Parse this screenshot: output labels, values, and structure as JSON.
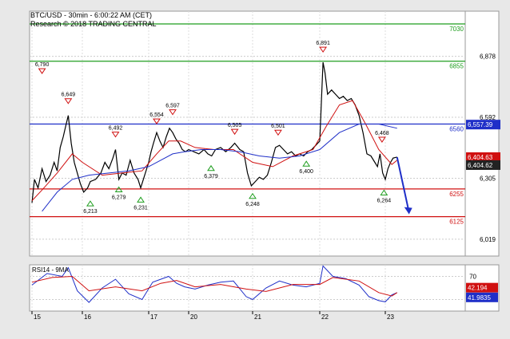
{
  "header": {
    "title": "BTC/USD - 30min - 6:00:22 AM (CET)",
    "copyright": "Research © 2018 TRADING CENTRAL"
  },
  "chart_data": {
    "type": "line",
    "instrument": "BTC/USD",
    "timeframe": "30min",
    "x_ticks": [
      "15",
      "16",
      "17",
      "20",
      "21",
      "22",
      "23"
    ],
    "y_ticks": [
      6019,
      6305,
      6592,
      6878
    ],
    "y_tick_labels": [
      "6,019",
      "6,305",
      "6,592",
      "6,878"
    ],
    "ylim": [
      5940,
      7090
    ],
    "horizontal_levels": [
      {
        "label": "7030",
        "value": 7030,
        "color": "#1f9e1f"
      },
      {
        "label": "6855",
        "value": 6855,
        "color": "#1f9e1f"
      },
      {
        "label": "6560",
        "value": 6560,
        "color": "#1f2fc8"
      },
      {
        "label": "6255",
        "value": 6255,
        "color": "#d01010"
      },
      {
        "label": "6125",
        "value": 6125,
        "color": "#d01010"
      }
    ],
    "price_badges": [
      {
        "label": "6,557.39",
        "value": 6557.39,
        "color": "#1f2fc8"
      },
      {
        "label": "6,404.63",
        "value": 6404.63,
        "color": "#d01010"
      },
      {
        "label": "6,404.62",
        "value": 6404.62,
        "color": "#222222"
      }
    ],
    "annotations": [
      {
        "label": "6,790",
        "value": 6790,
        "kind": "high",
        "x": 0.2
      },
      {
        "label": "6,649",
        "value": 6649,
        "kind": "high",
        "x": 0.72
      },
      {
        "label": "6,213",
        "value": 6213,
        "kind": "low",
        "x": 1.12
      },
      {
        "label": "6,492",
        "value": 6492,
        "kind": "high",
        "x": 1.5
      },
      {
        "label": "6,279",
        "value": 6279,
        "kind": "low",
        "x": 1.55
      },
      {
        "label": "6,231",
        "value": 6231,
        "kind": "low",
        "x": 1.88
      },
      {
        "label": "6,554",
        "value": 6554,
        "kind": "high",
        "x": 2.2
      },
      {
        "label": "6,597",
        "value": 6597,
        "kind": "high",
        "x": 2.6
      },
      {
        "label": "6,379",
        "value": 6379,
        "kind": "low",
        "x": 3.35
      },
      {
        "label": "6,505",
        "value": 6505,
        "kind": "high",
        "x": 3.72
      },
      {
        "label": "6,248",
        "value": 6248,
        "kind": "low",
        "x": 4.0
      },
      {
        "label": "6,501",
        "value": 6501,
        "kind": "high",
        "x": 4.38
      },
      {
        "label": "6,400",
        "value": 6400,
        "kind": "low",
        "x": 4.8
      },
      {
        "label": "6,891",
        "value": 6891,
        "kind": "high",
        "x": 5.05
      },
      {
        "label": "6,468",
        "value": 6468,
        "kind": "high",
        "x": 5.95
      },
      {
        "label": "6,264",
        "value": 6264,
        "kind": "low",
        "x": 5.98
      }
    ],
    "series": [
      {
        "color": "#000000",
        "points": [
          [
            0.0,
            6190
          ],
          [
            0.05,
            6300
          ],
          [
            0.12,
            6260
          ],
          [
            0.2,
            6350
          ],
          [
            0.28,
            6290
          ],
          [
            0.36,
            6320
          ],
          [
            0.44,
            6380
          ],
          [
            0.5,
            6340
          ],
          [
            0.56,
            6450
          ],
          [
            0.62,
            6500
          ],
          [
            0.68,
            6560
          ],
          [
            0.72,
            6600
          ],
          [
            0.78,
            6470
          ],
          [
            0.84,
            6380
          ],
          [
            0.9,
            6330
          ],
          [
            0.96,
            6280
          ],
          [
            1.02,
            6240
          ],
          [
            1.08,
            6260
          ],
          [
            1.12,
            6290
          ],
          [
            1.2,
            6300
          ],
          [
            1.28,
            6330
          ],
          [
            1.34,
            6380
          ],
          [
            1.4,
            6350
          ],
          [
            1.46,
            6400
          ],
          [
            1.5,
            6440
          ],
          [
            1.55,
            6300
          ],
          [
            1.6,
            6330
          ],
          [
            1.66,
            6320
          ],
          [
            1.72,
            6390
          ],
          [
            1.78,
            6330
          ],
          [
            1.84,
            6300
          ],
          [
            1.88,
            6260
          ],
          [
            1.94,
            6320
          ],
          [
            2.0,
            6380
          ],
          [
            2.06,
            6430
          ],
          [
            2.12,
            6470
          ],
          [
            2.2,
            6520
          ],
          [
            2.28,
            6480
          ],
          [
            2.36,
            6450
          ],
          [
            2.44,
            6500
          ],
          [
            2.52,
            6540
          ],
          [
            2.6,
            6520
          ],
          [
            2.68,
            6490
          ],
          [
            2.76,
            6470
          ],
          [
            2.84,
            6440
          ],
          [
            2.92,
            6430
          ],
          [
            3.0,
            6440
          ],
          [
            3.08,
            6430
          ],
          [
            3.16,
            6420
          ],
          [
            3.24,
            6440
          ],
          [
            3.3,
            6420
          ],
          [
            3.36,
            6410
          ],
          [
            3.42,
            6440
          ],
          [
            3.5,
            6450
          ],
          [
            3.58,
            6430
          ],
          [
            3.66,
            6450
          ],
          [
            3.72,
            6470
          ],
          [
            3.8,
            6440
          ],
          [
            3.86,
            6430
          ],
          [
            3.92,
            6330
          ],
          [
            3.98,
            6270
          ],
          [
            4.04,
            6290
          ],
          [
            4.1,
            6310
          ],
          [
            4.16,
            6300
          ],
          [
            4.22,
            6320
          ],
          [
            4.28,
            6380
          ],
          [
            4.34,
            6450
          ],
          [
            4.4,
            6460
          ],
          [
            4.46,
            6440
          ],
          [
            4.52,
            6420
          ],
          [
            4.58,
            6430
          ],
          [
            4.64,
            6410
          ],
          [
            4.7,
            6420
          ],
          [
            4.76,
            6410
          ],
          [
            4.82,
            6430
          ],
          [
            4.88,
            6440
          ],
          [
            4.94,
            6460
          ],
          [
            5.0,
            6480
          ],
          [
            5.05,
            6850
          ],
          [
            5.08,
            6800
          ],
          [
            5.12,
            6700
          ],
          [
            5.18,
            6720
          ],
          [
            5.24,
            6700
          ],
          [
            5.3,
            6680
          ],
          [
            5.36,
            6690
          ],
          [
            5.42,
            6670
          ],
          [
            5.48,
            6680
          ],
          [
            5.54,
            6650
          ],
          [
            5.6,
            6600
          ],
          [
            5.66,
            6520
          ],
          [
            5.72,
            6420
          ],
          [
            5.78,
            6410
          ],
          [
            5.84,
            6380
          ],
          [
            5.88,
            6360
          ],
          [
            5.92,
            6420
          ],
          [
            5.96,
            6330
          ],
          [
            6.0,
            6300
          ],
          [
            6.04,
            6350
          ],
          [
            6.08,
            6380
          ],
          [
            6.12,
            6400
          ],
          [
            6.18,
            6405
          ]
        ]
      },
      {
        "color": "#d01010",
        "points": [
          [
            0.0,
            6200
          ],
          [
            0.2,
            6250
          ],
          [
            0.5,
            6330
          ],
          [
            0.8,
            6420
          ],
          [
            1.0,
            6380
          ],
          [
            1.3,
            6320
          ],
          [
            1.6,
            6330
          ],
          [
            1.9,
            6340
          ],
          [
            2.2,
            6420
          ],
          [
            2.5,
            6480
          ],
          [
            2.8,
            6480
          ],
          [
            3.1,
            6450
          ],
          [
            3.4,
            6440
          ],
          [
            3.7,
            6440
          ],
          [
            4.0,
            6380
          ],
          [
            4.3,
            6360
          ],
          [
            4.6,
            6410
          ],
          [
            4.9,
            6440
          ],
          [
            5.1,
            6550
          ],
          [
            5.3,
            6650
          ],
          [
            5.5,
            6670
          ],
          [
            5.7,
            6560
          ],
          [
            5.9,
            6440
          ],
          [
            6.1,
            6370
          ],
          [
            6.18,
            6390
          ]
        ]
      },
      {
        "color": "#1f2fc8",
        "points": [
          [
            0.2,
            6150
          ],
          [
            0.5,
            6240
          ],
          [
            0.8,
            6300
          ],
          [
            1.1,
            6320
          ],
          [
            1.4,
            6330
          ],
          [
            1.7,
            6340
          ],
          [
            2.0,
            6360
          ],
          [
            2.3,
            6390
          ],
          [
            2.6,
            6420
          ],
          [
            2.9,
            6430
          ],
          [
            3.2,
            6440
          ],
          [
            3.5,
            6440
          ],
          [
            3.8,
            6430
          ],
          [
            4.1,
            6410
          ],
          [
            4.4,
            6400
          ],
          [
            4.7,
            6410
          ],
          [
            5.0,
            6440
          ],
          [
            5.3,
            6520
          ],
          [
            5.6,
            6560
          ],
          [
            5.9,
            6560
          ],
          [
            6.18,
            6540
          ]
        ]
      }
    ],
    "forecast_arrow": [
      [
        6.18,
        6404
      ],
      [
        6.35,
        6140
      ]
    ],
    "rsi": {
      "title": "RSI14 - 9MA",
      "y_ticks": [
        70,
        30
      ],
      "ylim": [
        10,
        90
      ],
      "value_badges": [
        {
          "label": "42.194",
          "value": 42.194,
          "color": "#d01010"
        },
        {
          "label": "41.9835",
          "value": 41.9835,
          "color": "#1f2fc8"
        }
      ],
      "rsi_points": [
        [
          0.0,
          55
        ],
        [
          0.3,
          75
        ],
        [
          0.6,
          70
        ],
        [
          0.72,
          85
        ],
        [
          0.9,
          45
        ],
        [
          1.1,
          25
        ],
        [
          1.3,
          50
        ],
        [
          1.5,
          65
        ],
        [
          1.7,
          40
        ],
        [
          1.9,
          30
        ],
        [
          2.1,
          60
        ],
        [
          2.3,
          65
        ],
        [
          2.5,
          70
        ],
        [
          2.7,
          58
        ],
        [
          2.9,
          52
        ],
        [
          3.1,
          48
        ],
        [
          3.3,
          55
        ],
        [
          3.5,
          60
        ],
        [
          3.7,
          62
        ],
        [
          3.9,
          35
        ],
        [
          4.0,
          30
        ],
        [
          4.2,
          50
        ],
        [
          4.4,
          62
        ],
        [
          4.6,
          55
        ],
        [
          4.8,
          52
        ],
        [
          5.0,
          58
        ],
        [
          5.05,
          88
        ],
        [
          5.2,
          70
        ],
        [
          5.4,
          66
        ],
        [
          5.6,
          55
        ],
        [
          5.75,
          35
        ],
        [
          5.9,
          28
        ],
        [
          6.0,
          26
        ],
        [
          6.1,
          38
        ],
        [
          6.18,
          42
        ]
      ],
      "ma_points": [
        [
          0.0,
          60
        ],
        [
          0.4,
          68
        ],
        [
          0.8,
          70
        ],
        [
          1.1,
          45
        ],
        [
          1.5,
          52
        ],
        [
          1.9,
          45
        ],
        [
          2.3,
          58
        ],
        [
          2.7,
          63
        ],
        [
          3.1,
          52
        ],
        [
          3.5,
          56
        ],
        [
          3.9,
          48
        ],
        [
          4.2,
          44
        ],
        [
          4.6,
          56
        ],
        [
          5.0,
          56
        ],
        [
          5.2,
          68
        ],
        [
          5.6,
          62
        ],
        [
          5.9,
          42
        ],
        [
          6.1,
          36
        ],
        [
          6.18,
          42
        ]
      ]
    }
  }
}
